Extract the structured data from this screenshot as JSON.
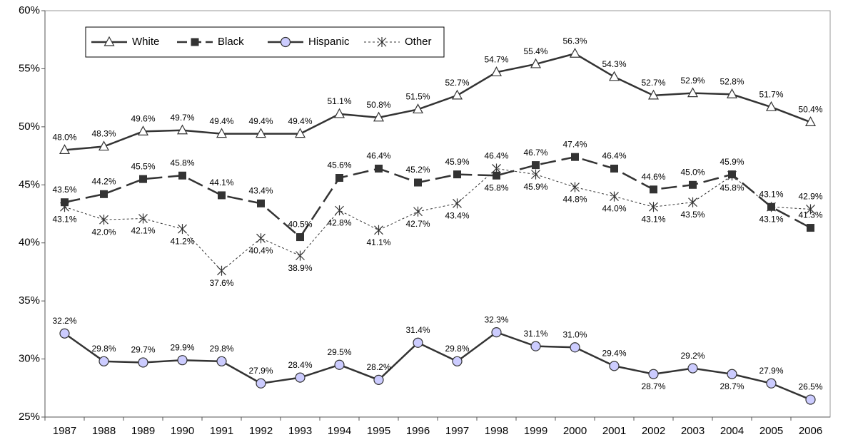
{
  "chart_data": {
    "type": "line",
    "categories": [
      "1987",
      "1988",
      "1989",
      "1990",
      "1991",
      "1992",
      "1993",
      "1994",
      "1995",
      "1996",
      "1997",
      "1998",
      "1999",
      "2000",
      "2001",
      "2002",
      "2003",
      "2004",
      "2005",
      "2006"
    ],
    "ylim": [
      25,
      60
    ],
    "yticks": [
      {
        "value": 25,
        "label": "25%"
      },
      {
        "value": 30,
        "label": "30%"
      },
      {
        "value": 35,
        "label": "35%"
      },
      {
        "value": 40,
        "label": "40%"
      },
      {
        "value": 45,
        "label": "45%"
      },
      {
        "value": 50,
        "label": "50%"
      },
      {
        "value": 55,
        "label": "55%"
      },
      {
        "value": 60,
        "label": "60%"
      }
    ],
    "grid": false,
    "legend": "top-left",
    "series": [
      {
        "name": "White",
        "color": "#333333",
        "values": [
          48.0,
          48.3,
          49.6,
          49.7,
          49.4,
          49.4,
          49.4,
          51.1,
          50.8,
          51.5,
          52.7,
          54.7,
          55.4,
          56.3,
          54.3,
          52.7,
          52.9,
          52.8,
          51.7,
          50.4
        ],
        "value_labels": [
          "48.0%",
          "48.3%",
          "49.6%",
          "49.7%",
          "49.4%",
          "49.4%",
          "49.4%",
          "51.1%",
          "50.8%",
          "51.5%",
          "52.7%",
          "54.7%",
          "55.4%",
          "56.3%",
          "54.3%",
          "52.7%",
          "52.9%",
          "52.8%",
          "51.7%",
          "50.4%"
        ]
      },
      {
        "name": "Black",
        "color": "#333333",
        "values": [
          43.5,
          44.2,
          45.5,
          45.8,
          44.1,
          43.4,
          40.5,
          45.6,
          46.4,
          45.2,
          45.9,
          45.8,
          46.7,
          47.4,
          46.4,
          44.6,
          45.0,
          45.9,
          43.1,
          41.3
        ],
        "value_labels": [
          "43.5%",
          "44.2%",
          "45.5%",
          "45.8%",
          "44.1%",
          "43.4%",
          "40.5%",
          "45.6%",
          "46.4%",
          "45.2%",
          "45.9%",
          "45.8%",
          "46.7%",
          "47.4%",
          "46.4%",
          "44.6%",
          "45.0%",
          "45.9%",
          "43.1%",
          "41.3%"
        ]
      },
      {
        "name": "Hispanic",
        "color": "#333333",
        "values": [
          32.2,
          29.8,
          29.7,
          29.9,
          29.8,
          27.9,
          28.4,
          29.5,
          28.2,
          31.4,
          29.8,
          32.3,
          31.1,
          31.0,
          29.4,
          28.7,
          29.2,
          28.7,
          27.9,
          26.5
        ],
        "value_labels": [
          "32.2%",
          "29.8%",
          "29.7%",
          "29.9%",
          "29.8%",
          "27.9%",
          "28.4%",
          "29.5%",
          "28.2%",
          "31.4%",
          "29.8%",
          "32.3%",
          "31.1%",
          "31.0%",
          "29.4%",
          "28.7%",
          "29.2%",
          "28.7%",
          "27.9%",
          "26.5%"
        ]
      },
      {
        "name": "Other",
        "color": "#333333",
        "values": [
          43.1,
          42.0,
          42.1,
          41.2,
          37.6,
          40.4,
          38.9,
          42.8,
          41.1,
          42.7,
          43.4,
          46.4,
          45.9,
          44.8,
          44.0,
          43.1,
          43.5,
          45.8,
          43.1,
          42.9
        ],
        "value_labels": [
          "43.1%",
          "42.0%",
          "42.1%",
          "41.2%",
          "37.6%",
          "40.4%",
          "38.9%",
          "42.8%",
          "41.1%",
          "42.7%",
          "43.4%",
          "46.4%",
          "45.9%",
          "44.8%",
          "44.0%",
          "43.1%",
          "43.5%",
          "45.8%",
          "43.1%",
          "42.9%"
        ]
      }
    ]
  }
}
